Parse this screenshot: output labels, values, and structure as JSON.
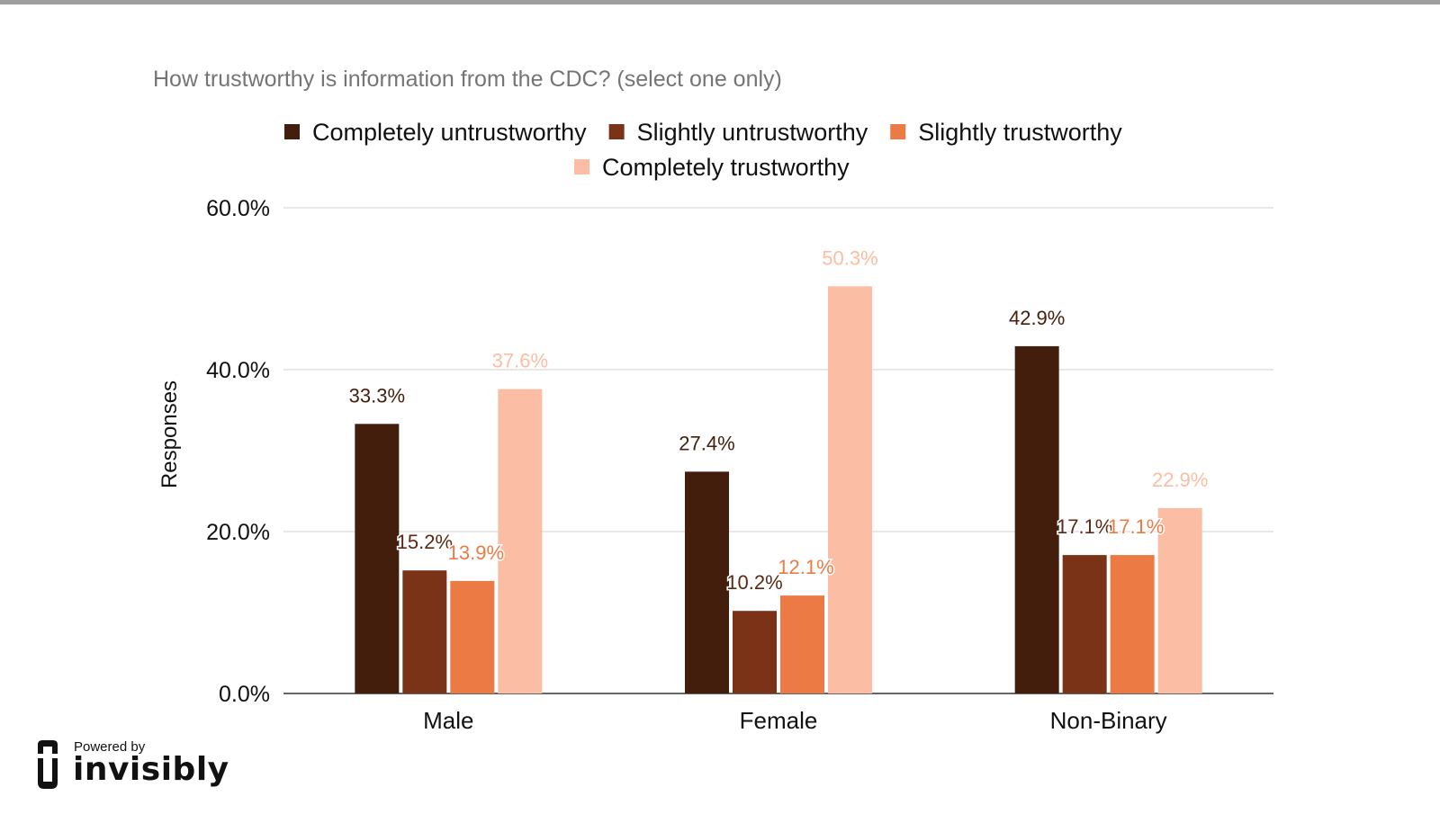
{
  "chart_data": {
    "type": "bar",
    "title": "How trustworthy is information from the CDC? (select one only)",
    "xlabel": "",
    "ylabel": "Responses",
    "categories": [
      "Male",
      "Female",
      "Non-Binary"
    ],
    "ylim": [
      0,
      60
    ],
    "yticks": [
      0,
      20,
      40,
      60
    ],
    "ytick_labels": [
      "0.0%",
      "20.0%",
      "40.0%",
      "60.0%"
    ],
    "grid": true,
    "legend_position": "top",
    "series": [
      {
        "name": "Completely untrustworthy",
        "color": "#431e0c",
        "values": [
          33.3,
          27.4,
          42.9
        ],
        "labels": [
          "33.3%",
          "27.4%",
          "42.9%"
        ]
      },
      {
        "name": "Slightly untrustworthy",
        "color": "#7a3317",
        "values": [
          15.2,
          10.2,
          17.1
        ],
        "labels": [
          "15.2%",
          "10.2%",
          "17.1%"
        ]
      },
      {
        "name": "Slightly trustworthy",
        "color": "#eb7a45",
        "values": [
          13.9,
          12.1,
          17.1
        ],
        "labels": [
          "13.9%",
          "12.1%",
          "17.1%"
        ]
      },
      {
        "name": "Completely trustworthy",
        "color": "#fbbda3",
        "values": [
          37.6,
          50.3,
          22.9
        ],
        "labels": [
          "37.6%",
          "50.3%",
          "22.9%"
        ]
      }
    ]
  },
  "branding": {
    "powered_by": "Powered by",
    "name": "invisibly"
  }
}
